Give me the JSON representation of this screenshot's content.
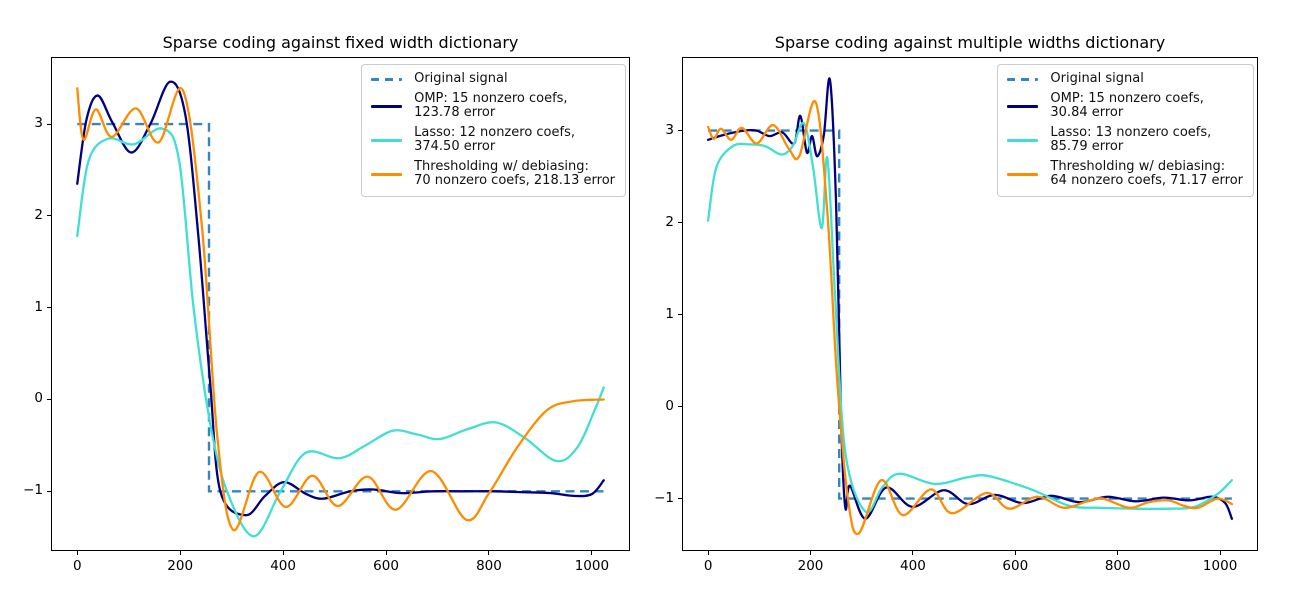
{
  "figure": {
    "background": "#ffffff"
  },
  "chart_data": [
    {
      "type": "line",
      "title": "Sparse coding against fixed width dictionary",
      "xlabel": "",
      "ylabel": "",
      "xlim": [
        -51,
        1074
      ],
      "ylim": [
        -1.65,
        3.73
      ],
      "xticks": [
        0,
        200,
        400,
        600,
        800,
        1000
      ],
      "yticks": [
        -1,
        0,
        1,
        2,
        3
      ],
      "grid": false,
      "legend": {
        "position": "upper right",
        "entries": [
          {
            "label_lines": [
              "Original signal"
            ],
            "color": "#3585c1",
            "dashed": true
          },
          {
            "label_lines": [
              "OMP: 15 nonzero coefs,",
              "123.78 error"
            ],
            "color": "#000080",
            "dashed": false
          },
          {
            "label_lines": [
              "Lasso: 12 nonzero coefs,",
              "374.50 error"
            ],
            "color": "#40e0d0",
            "dashed": false
          },
          {
            "label_lines": [
              "Thresholding w/ debiasing:",
              "70 nonzero coefs, 218.13 error"
            ],
            "color": "#ff8c00",
            "dashed": false
          }
        ]
      },
      "series": [
        {
          "name": "Original signal",
          "color": "#3585c1",
          "style": "dashed",
          "smooth": false,
          "points": [
            [
              0,
              3
            ],
            [
              256,
              3
            ],
            [
              256,
              -1
            ],
            [
              1023,
              -1
            ]
          ]
        },
        {
          "name": "OMP: 15 nonzero coefs, 123.78 error",
          "color": "#000080",
          "style": "solid",
          "smooth": true,
          "points": [
            [
              0,
              2.35
            ],
            [
              18,
              3.05
            ],
            [
              40,
              3.31
            ],
            [
              68,
              3.02
            ],
            [
              105,
              2.69
            ],
            [
              142,
              3.0
            ],
            [
              180,
              3.46
            ],
            [
              210,
              3.1
            ],
            [
              235,
              1.8
            ],
            [
              258,
              0.2
            ],
            [
              278,
              -1.0
            ],
            [
              327,
              -1.26
            ],
            [
              365,
              -1.05
            ],
            [
              402,
              -0.9
            ],
            [
              445,
              -1.03
            ],
            [
              478,
              -1.08
            ],
            [
              530,
              -1.0
            ],
            [
              575,
              -0.98
            ],
            [
              630,
              -1.02
            ],
            [
              690,
              -1.0
            ],
            [
              750,
              -1.0
            ],
            [
              810,
              -1.0
            ],
            [
              870,
              -1.01
            ],
            [
              920,
              -1.02
            ],
            [
              965,
              -1.05
            ],
            [
              1000,
              -1.03
            ],
            [
              1023,
              -0.88
            ]
          ]
        },
        {
          "name": "Lasso: 12 nonzero coefs, 374.50 error",
          "color": "#40e0d0",
          "style": "solid",
          "smooth": true,
          "points": [
            [
              0,
              1.78
            ],
            [
              22,
              2.6
            ],
            [
              60,
              2.84
            ],
            [
              110,
              2.78
            ],
            [
              165,
              2.95
            ],
            [
              198,
              2.6
            ],
            [
              226,
              1.0
            ],
            [
              258,
              -0.25
            ],
            [
              291,
              -1.0
            ],
            [
              343,
              -1.49
            ],
            [
              395,
              -1.0
            ],
            [
              444,
              -0.58
            ],
            [
              509,
              -0.64
            ],
            [
              560,
              -0.5
            ],
            [
              613,
              -0.34
            ],
            [
              660,
              -0.38
            ],
            [
              704,
              -0.43
            ],
            [
              760,
              -0.32
            ],
            [
              814,
              -0.25
            ],
            [
              870,
              -0.42
            ],
            [
              931,
              -0.67
            ],
            [
              972,
              -0.52
            ],
            [
              1005,
              -0.12
            ],
            [
              1023,
              0.13
            ]
          ]
        },
        {
          "name": "Thresholding w/ debiasing: 70 nonzero coefs, 218.13 error",
          "color": "#ff8c00",
          "style": "solid",
          "smooth": true,
          "points": [
            [
              0,
              3.39
            ],
            [
              12,
              2.83
            ],
            [
              36,
              3.16
            ],
            [
              67,
              2.86
            ],
            [
              114,
              3.17
            ],
            [
              158,
              2.8
            ],
            [
              205,
              3.37
            ],
            [
              242,
              1.9
            ],
            [
              272,
              -0.4
            ],
            [
              303,
              -1.42
            ],
            [
              353,
              -0.79
            ],
            [
              405,
              -1.17
            ],
            [
              457,
              -0.83
            ],
            [
              506,
              -1.16
            ],
            [
              564,
              -0.84
            ],
            [
              619,
              -1.2
            ],
            [
              688,
              -0.78
            ],
            [
              756,
              -1.31
            ],
            [
              800,
              -1.02
            ],
            [
              855,
              -0.52
            ],
            [
              912,
              -0.12
            ],
            [
              962,
              -0.02
            ],
            [
              1023,
              0.0
            ]
          ]
        }
      ]
    },
    {
      "type": "line",
      "title": "Sparse coding against multiple widths dictionary",
      "xlabel": "",
      "ylabel": "",
      "xlim": [
        -51,
        1074
      ],
      "ylim": [
        -1.57,
        3.8
      ],
      "xticks": [
        0,
        200,
        400,
        600,
        800,
        1000
      ],
      "yticks": [
        -1,
        0,
        1,
        2,
        3
      ],
      "grid": false,
      "legend": {
        "position": "upper right",
        "entries": [
          {
            "label_lines": [
              "Original signal"
            ],
            "color": "#3585c1",
            "dashed": true
          },
          {
            "label_lines": [
              "OMP: 15 nonzero coefs,",
              "30.84 error"
            ],
            "color": "#000080",
            "dashed": false
          },
          {
            "label_lines": [
              "Lasso: 13 nonzero coefs,",
              "85.79 error"
            ],
            "color": "#40e0d0",
            "dashed": false
          },
          {
            "label_lines": [
              "Thresholding w/ debiasing:",
              "64 nonzero coefs, 71.17 error"
            ],
            "color": "#ff8c00",
            "dashed": false
          }
        ]
      },
      "series": [
        {
          "name": "Original signal",
          "color": "#3585c1",
          "style": "dashed",
          "smooth": false,
          "points": [
            [
              0,
              3
            ],
            [
              256,
              3
            ],
            [
              256,
              -1
            ],
            [
              1023,
              -1
            ]
          ]
        },
        {
          "name": "OMP: 15 nonzero coefs, 30.84 error",
          "color": "#000080",
          "style": "solid",
          "smooth": true,
          "points": [
            [
              0,
              2.9
            ],
            [
              35,
              2.96
            ],
            [
              70,
              3.0
            ],
            [
              95,
              3.0
            ],
            [
              120,
              2.94
            ],
            [
              145,
              2.98
            ],
            [
              168,
              2.86
            ],
            [
              180,
              3.16
            ],
            [
              193,
              2.76
            ],
            [
              203,
              2.94
            ],
            [
              213,
              2.72
            ],
            [
              226,
              2.95
            ],
            [
              238,
              3.55
            ],
            [
              250,
              2.2
            ],
            [
              260,
              -0.2
            ],
            [
              268,
              -1.1
            ],
            [
              277,
              -0.86
            ],
            [
              307,
              -1.22
            ],
            [
              348,
              -0.88
            ],
            [
              399,
              -1.09
            ],
            [
              460,
              -0.91
            ],
            [
              508,
              -1.06
            ],
            [
              560,
              -0.96
            ],
            [
              615,
              -1.05
            ],
            [
              670,
              -0.97
            ],
            [
              725,
              -1.04
            ],
            [
              780,
              -0.98
            ],
            [
              835,
              -1.03
            ],
            [
              890,
              -0.99
            ],
            [
              940,
              -1.02
            ],
            [
              985,
              -0.98
            ],
            [
              1010,
              -1.05
            ],
            [
              1023,
              -1.22
            ]
          ]
        },
        {
          "name": "Lasso: 13 nonzero coefs, 85.79 error",
          "color": "#40e0d0",
          "style": "solid",
          "smooth": true,
          "points": [
            [
              0,
              2.02
            ],
            [
              16,
              2.6
            ],
            [
              48,
              2.83
            ],
            [
              80,
              2.85
            ],
            [
              112,
              2.83
            ],
            [
              143,
              2.74
            ],
            [
              165,
              2.83
            ],
            [
              187,
              3.08
            ],
            [
              205,
              2.6
            ],
            [
              222,
              1.94
            ],
            [
              233,
              2.7
            ],
            [
              248,
              1.2
            ],
            [
              268,
              -0.5
            ],
            [
              307,
              -1.14
            ],
            [
              340,
              -0.88
            ],
            [
              373,
              -0.73
            ],
            [
              442,
              -0.84
            ],
            [
              505,
              -0.77
            ],
            [
              543,
              -0.75
            ],
            [
              600,
              -0.84
            ],
            [
              640,
              -0.92
            ],
            [
              706,
              -1.08
            ],
            [
              760,
              -1.1
            ],
            [
              830,
              -1.11
            ],
            [
              900,
              -1.11
            ],
            [
              950,
              -1.09
            ],
            [
              995,
              -0.95
            ],
            [
              1023,
              -0.8
            ]
          ]
        },
        {
          "name": "Thresholding w/ debiasing: 64 nonzero coefs, 71.17 error",
          "color": "#ff8c00",
          "style": "solid",
          "smooth": true,
          "points": [
            [
              0,
              3.04
            ],
            [
              11,
              2.91
            ],
            [
              25,
              3.02
            ],
            [
              45,
              2.9
            ],
            [
              66,
              3.03
            ],
            [
              95,
              2.86
            ],
            [
              127,
              3.06
            ],
            [
              158,
              2.8
            ],
            [
              178,
              2.72
            ],
            [
              210,
              3.31
            ],
            [
              233,
              2.1
            ],
            [
              252,
              0.3
            ],
            [
              273,
              -1.0
            ],
            [
              294,
              -1.38
            ],
            [
              338,
              -0.8
            ],
            [
              380,
              -1.18
            ],
            [
              435,
              -0.9
            ],
            [
              476,
              -1.16
            ],
            [
              544,
              -0.94
            ],
            [
              588,
              -1.11
            ],
            [
              643,
              -0.98
            ],
            [
              694,
              -1.1
            ],
            [
              740,
              -1.03
            ],
            [
              771,
              -1.0
            ],
            [
              822,
              -1.1
            ],
            [
              860,
              -1.04
            ],
            [
              899,
              -1.02
            ],
            [
              930,
              -1.08
            ],
            [
              957,
              -1.1
            ],
            [
              995,
              -1.0
            ],
            [
              1023,
              -1.06
            ]
          ]
        }
      ]
    }
  ]
}
